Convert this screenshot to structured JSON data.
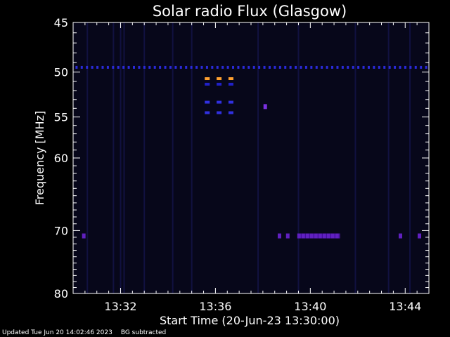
{
  "chart_data": {
    "type": "heatmap",
    "title": "Solar radio Flux (Glasgow)",
    "xlabel": "Start Time (20-Jun-23 13:30:00)",
    "ylabel": "Frequency [MHz]",
    "x_range_minutes": [
      0.0,
      15.0
    ],
    "ylim": [
      45,
      80
    ],
    "y_scale": "log",
    "x_ticks": [
      {
        "minute": 2,
        "label": "13:32"
      },
      {
        "minute": 6,
        "label": "13:36"
      },
      {
        "minute": 10,
        "label": "13:40"
      },
      {
        "minute": 14,
        "label": "13:44"
      }
    ],
    "y_ticks": [
      {
        "value": 45,
        "label": "45"
      },
      {
        "value": 50,
        "label": "50"
      },
      {
        "value": 55,
        "label": "55"
      },
      {
        "value": 60,
        "label": "60"
      },
      {
        "value": 70,
        "label": "70"
      },
      {
        "value": 80,
        "label": "80"
      }
    ],
    "background_color": "#07071a",
    "features": [
      {
        "kind": "dashed_band",
        "freq": 49.5,
        "t_start": 0.1,
        "t_end": 14.9,
        "spacing": 0.22,
        "color": "#2a2ad8"
      },
      {
        "kind": "dashed_band",
        "freq": 50.7,
        "t_start": 5.55,
        "t_end": 6.7,
        "spacing": 0.5,
        "color": "#ffa030"
      },
      {
        "kind": "dashed_band",
        "freq": 51.3,
        "t_start": 5.55,
        "t_end": 6.7,
        "spacing": 0.5,
        "color": "#2020c8"
      },
      {
        "kind": "dashed_band",
        "freq": 53.3,
        "t_start": 5.55,
        "t_end": 6.7,
        "spacing": 0.5,
        "color": "#3030e0"
      },
      {
        "kind": "dashed_band",
        "freq": 54.5,
        "t_start": 5.55,
        "t_end": 6.7,
        "spacing": 0.5,
        "color": "#3030e0"
      },
      {
        "kind": "spot",
        "freq": 53.8,
        "t": 8.1,
        "color": "#7a30e0"
      },
      {
        "kind": "spot",
        "freq": 70.8,
        "t": 0.45,
        "color": "#6020c0"
      },
      {
        "kind": "spot",
        "freq": 70.8,
        "t": 8.7,
        "color": "#6020c0"
      },
      {
        "kind": "spot",
        "freq": 70.8,
        "t": 9.05,
        "color": "#6020c0"
      },
      {
        "kind": "spot",
        "freq": 70.8,
        "t": 13.8,
        "color": "#6020c0"
      },
      {
        "kind": "spot",
        "freq": 70.8,
        "t": 14.6,
        "color": "#6020c0"
      },
      {
        "kind": "bar",
        "freq": 70.8,
        "t_start": 9.45,
        "t_end": 11.25,
        "color": "#6020c0"
      }
    ],
    "vertical_streaks_minutes": [
      2.0,
      2.15,
      1.7,
      3.0,
      4.2,
      5.0,
      7.8,
      9.5,
      11.9,
      13.3,
      0.6,
      14.2
    ]
  },
  "footer": {
    "updated": "Updated Tue Jun 20 14:02:46 2023",
    "note": "BG subtracted"
  }
}
